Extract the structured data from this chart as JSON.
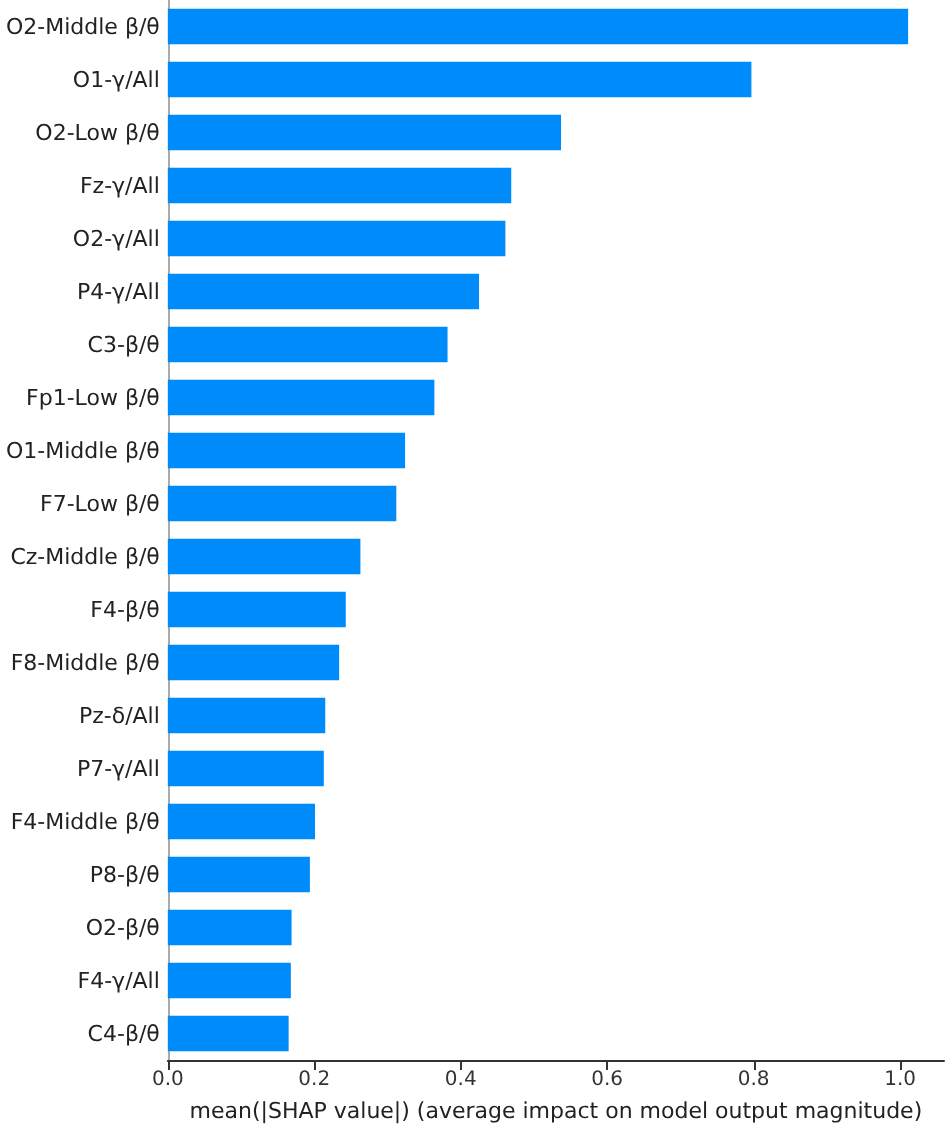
{
  "chart_data": {
    "type": "bar",
    "orientation": "horizontal",
    "xlabel": "mean(|SHAP value|) (average impact on model output magnitude)",
    "categories": [
      "O2-Middle β/θ",
      "O1-γ/All",
      "O2-Low β/θ",
      "Fz-γ/All",
      "O2-γ/All",
      "P4-γ/All",
      "C3-β/θ",
      "Fp1-Low β/θ",
      "O1-Middle β/θ",
      "F7-Low β/θ",
      "Cz-Middle β/θ",
      "F4-β/θ",
      "F8-Middle β/θ",
      "Pz-δ/All",
      "P7-γ/All",
      "F4-Middle β/θ",
      "P8-β/θ",
      "O2-β/θ",
      "F4-γ/All",
      "C4-β/θ"
    ],
    "values": [
      1.011,
      0.797,
      0.537,
      0.469,
      0.461,
      0.425,
      0.382,
      0.364,
      0.324,
      0.312,
      0.263,
      0.243,
      0.234,
      0.215,
      0.213,
      0.201,
      0.194,
      0.169,
      0.168,
      0.165
    ],
    "color": "#008bfb",
    "xlim": [
      0,
      1.06
    ],
    "xticks": [
      {
        "value": 0,
        "label": "0.0"
      },
      {
        "value": 0.2,
        "label": "0.2"
      },
      {
        "value": 0.4,
        "label": "0.4"
      },
      {
        "value": 0.6,
        "label": "0.6"
      },
      {
        "value": 0.8,
        "label": "0.8"
      },
      {
        "value": 1,
        "label": "1.0"
      }
    ],
    "grid": false
  }
}
